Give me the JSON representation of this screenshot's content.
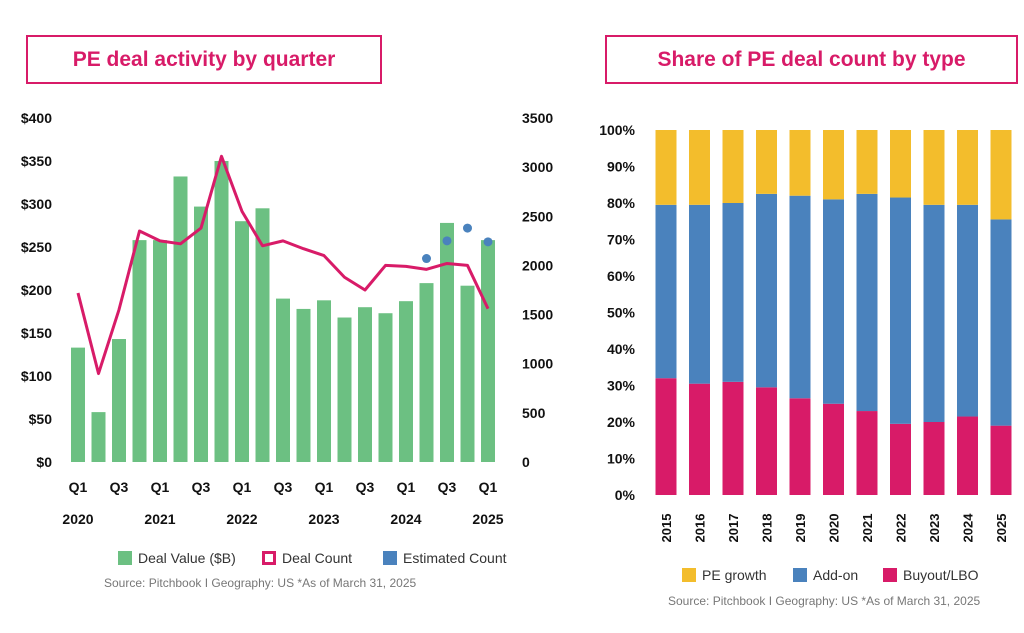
{
  "left_title": "PE deal activity by quarter",
  "right_title": "Share of PE deal count by type",
  "left_legend": [
    {
      "label": "Deal Value ($B)",
      "color": "#6cc082"
    },
    {
      "label": "Deal Count",
      "color": "#d81b68"
    },
    {
      "label": "Estimated Count",
      "color": "#4a82bd"
    }
  ],
  "right_legend": [
    {
      "label": "PE growth",
      "color": "#f3bd2c"
    },
    {
      "label": "Add-on",
      "color": "#4a82bd"
    },
    {
      "label": "Buyout/LBO",
      "color": "#d81b68"
    }
  ],
  "left_source": "Source: Pitchbook I Geography: US *As of March 31, 2025",
  "right_source": "Source: Pitchbook I Geography: US *As of March 31, 2025",
  "chart_data": [
    {
      "type": "bar",
      "title": "PE deal activity by quarter",
      "y_left_ticks": [
        "$400",
        "$350",
        "$300",
        "$250",
        "$200",
        "$150",
        "$100",
        "$50",
        "$0"
      ],
      "y_right_ticks": [
        "3500",
        "3000",
        "2500",
        "2000",
        "1500",
        "1000",
        "500",
        "0"
      ],
      "ylim_left": [
        0,
        400
      ],
      "ylim_right": [
        0,
        3500
      ],
      "x_tick_labels": [
        "Q1",
        "",
        "Q3",
        "",
        "Q1",
        "",
        "Q3",
        "",
        "Q1",
        "",
        "Q3",
        "",
        "Q1",
        "",
        "Q3",
        "",
        "Q1",
        "",
        "Q3",
        "",
        "Q1"
      ],
      "year_labels": [
        {
          "label": "2020",
          "index": 0
        },
        {
          "label": "2021",
          "index": 4
        },
        {
          "label": "2022",
          "index": 8
        },
        {
          "label": "2023",
          "index": 12
        },
        {
          "label": "2024",
          "index": 16
        },
        {
          "label": "2025",
          "index": 20
        }
      ],
      "series": [
        {
          "name": "Deal Value ($B)",
          "kind": "bar",
          "values": [
            133,
            58,
            143,
            258,
            258,
            332,
            297,
            350,
            280,
            295,
            190,
            178,
            188,
            168,
            180,
            173,
            187,
            208,
            278,
            205,
            258
          ]
        },
        {
          "name": "Deal Count",
          "kind": "line",
          "values": [
            1720,
            900,
            1550,
            2350,
            2250,
            2220,
            2380,
            3110,
            2550,
            2200,
            2250,
            2170,
            2100,
            1880,
            1750,
            2000,
            1990,
            1960,
            2020,
            2000,
            1560
          ]
        },
        {
          "name": "Estimated Count",
          "kind": "scatter",
          "points": [
            {
              "index": 17,
              "value": 2070
            },
            {
              "index": 18,
              "value": 2250
            },
            {
              "index": 19,
              "value": 2380
            },
            {
              "index": 20,
              "value": 2240
            }
          ]
        }
      ]
    },
    {
      "type": "bar",
      "stacked": true,
      "title": "Share of PE deal count by type",
      "y_ticks": [
        "100%",
        "90%",
        "80%",
        "70%",
        "60%",
        "50%",
        "40%",
        "30%",
        "20%",
        "10%",
        "0%"
      ],
      "ylim": [
        0,
        100
      ],
      "categories": [
        "2015",
        "2016",
        "2017",
        "2018",
        "2019",
        "2020",
        "2021",
        "2022",
        "2023",
        "2024",
        "2025"
      ],
      "series": [
        {
          "name": "Buyout/LBO",
          "values": [
            32,
            30.5,
            31,
            29.5,
            26.5,
            25,
            23,
            19.5,
            20,
            21.5,
            19
          ]
        },
        {
          "name": "Add-on",
          "values": [
            47.5,
            49,
            49,
            53,
            55.5,
            56,
            59.5,
            62,
            59.5,
            58,
            56.5
          ]
        },
        {
          "name": "PE growth",
          "values": [
            20.5,
            20.5,
            20,
            17.5,
            18,
            19,
            17.5,
            18.5,
            20.5,
            20.5,
            24.5
          ]
        }
      ]
    }
  ]
}
